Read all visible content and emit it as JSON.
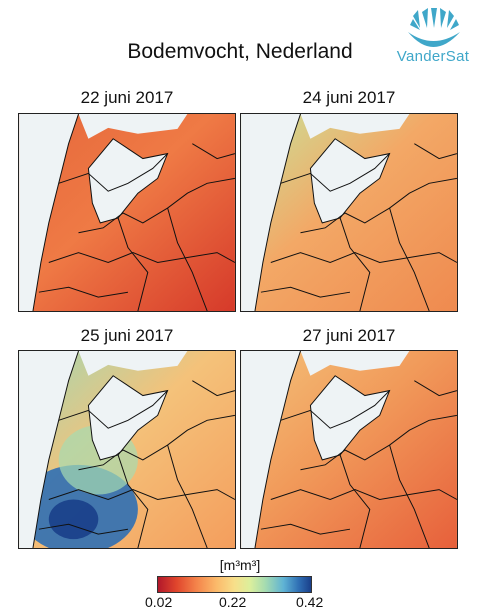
{
  "title": "Bodemvocht, Nederland",
  "logo": {
    "text": "VanderSat",
    "color": "#3fa7c9"
  },
  "panels": [
    {
      "label": "22 juni 2017",
      "base": "#ef7a45",
      "east": "#d63a2a",
      "north": "#e5673b"
    },
    {
      "label": "24 juni 2017",
      "base": "#f3a866",
      "east": "#ef8a4f",
      "north": "#c8e39a"
    },
    {
      "label": "25 juni 2017",
      "base": "#f4c27a",
      "east": "#f49e5d",
      "north": "#9fd8b4"
    },
    {
      "label": "27 juni 2017",
      "base": "#f19a5a",
      "east": "#e7603b",
      "north": "#f4c27a"
    }
  ],
  "colorbar": {
    "unit": "[m³m³]",
    "ticks": [
      "0.02",
      "0.22",
      "0.42"
    ],
    "min": 0.02,
    "max": 0.42
  }
}
